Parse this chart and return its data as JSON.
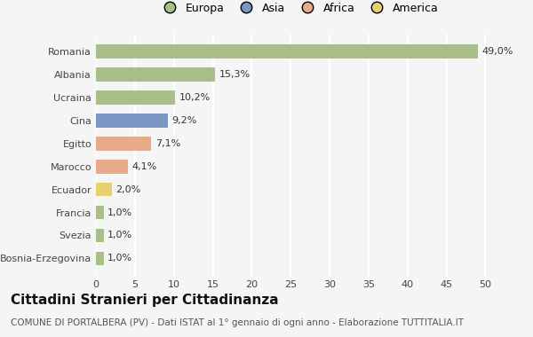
{
  "categories": [
    "Romania",
    "Albania",
    "Ucraina",
    "Cina",
    "Egitto",
    "Marocco",
    "Ecuador",
    "Francia",
    "Svezia",
    "Bosnia-Erzegovina"
  ],
  "values": [
    49.0,
    15.3,
    10.2,
    9.2,
    7.1,
    4.1,
    2.0,
    1.0,
    1.0,
    1.0
  ],
  "labels": [
    "49,0%",
    "15,3%",
    "10,2%",
    "9,2%",
    "7,1%",
    "4,1%",
    "2,0%",
    "1,0%",
    "1,0%",
    "1,0%"
  ],
  "bar_colors": [
    "#a8bf8a",
    "#a8bf8a",
    "#a8bf8a",
    "#7b96c2",
    "#e8aa88",
    "#e8aa88",
    "#e8d070",
    "#a8bf8a",
    "#a8bf8a",
    "#a8bf8a"
  ],
  "legend_labels": [
    "Europa",
    "Asia",
    "Africa",
    "America"
  ],
  "legend_colors": [
    "#a8bf8a",
    "#7b96c2",
    "#e8aa88",
    "#e8d070"
  ],
  "xlim": [
    0,
    52
  ],
  "xticks": [
    0,
    5,
    10,
    15,
    20,
    25,
    30,
    35,
    40,
    45,
    50
  ],
  "title": "Cittadini Stranieri per Cittadinanza",
  "subtitle": "COMUNE DI PORTALBERA (PV) - Dati ISTAT al 1° gennaio di ogni anno - Elaborazione TUTTITALIA.IT",
  "background_color": "#f5f5f5",
  "grid_color": "#ffffff",
  "title_fontsize": 11,
  "subtitle_fontsize": 7.5,
  "label_fontsize": 8,
  "tick_fontsize": 8,
  "legend_fontsize": 9
}
